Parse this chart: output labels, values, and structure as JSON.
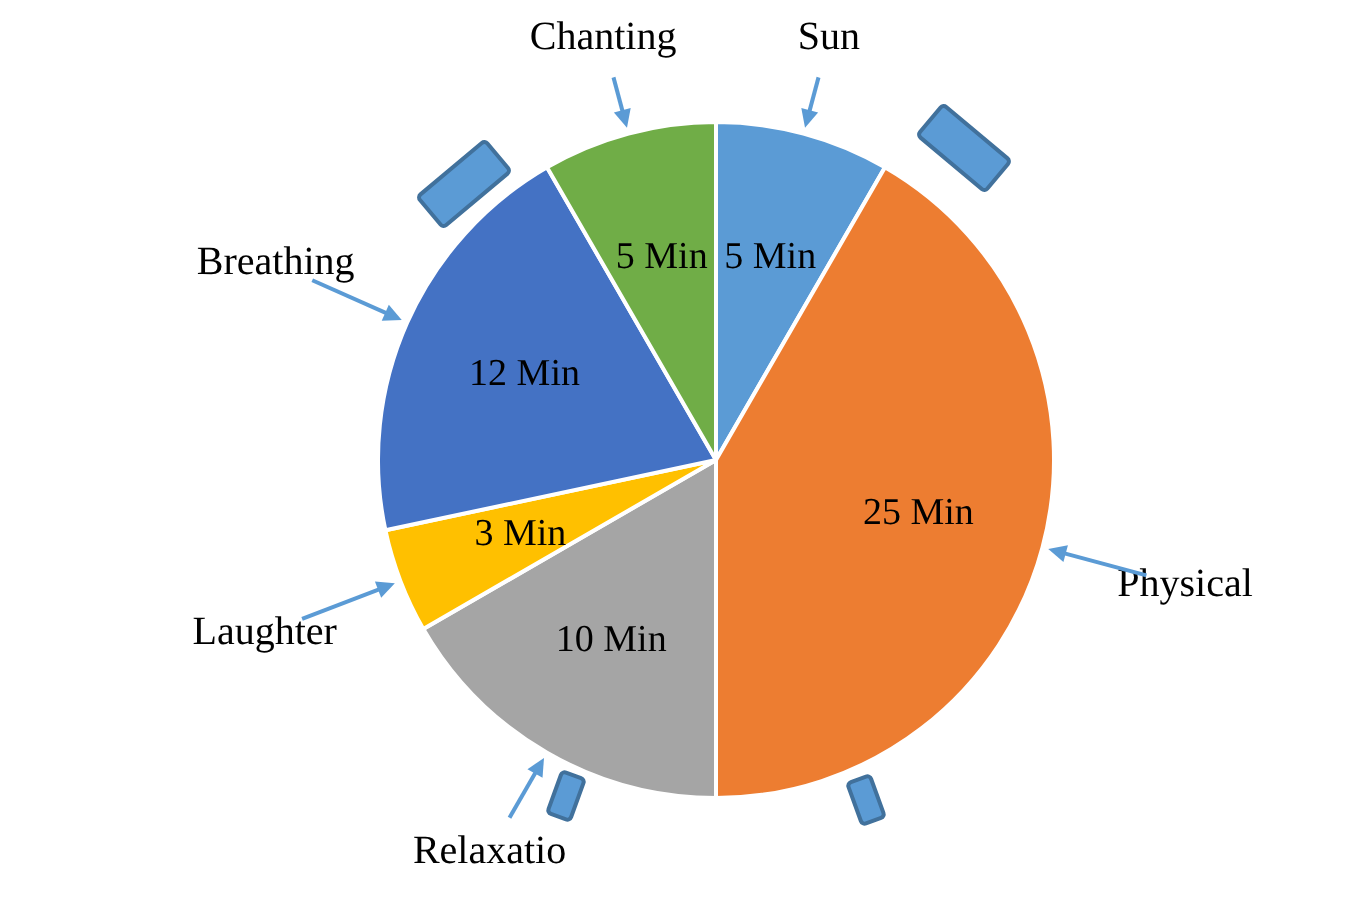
{
  "chart_data": {
    "type": "pie",
    "categories": [
      "Sun",
      "Physical",
      "Relaxatio",
      "Laughter",
      "Breathing",
      "Chanting"
    ],
    "values": [
      5,
      25,
      10,
      3,
      12,
      5
    ],
    "colors": [
      "#5b9bd5",
      "#ed7d31",
      "#a5a5a5",
      "#ffc000",
      "#4472c4",
      "#70ad47"
    ],
    "value_labels": [
      "5 Min",
      "25 Min",
      "10 Min",
      "3 Min",
      "12 Min",
      "5 Min"
    ]
  }
}
